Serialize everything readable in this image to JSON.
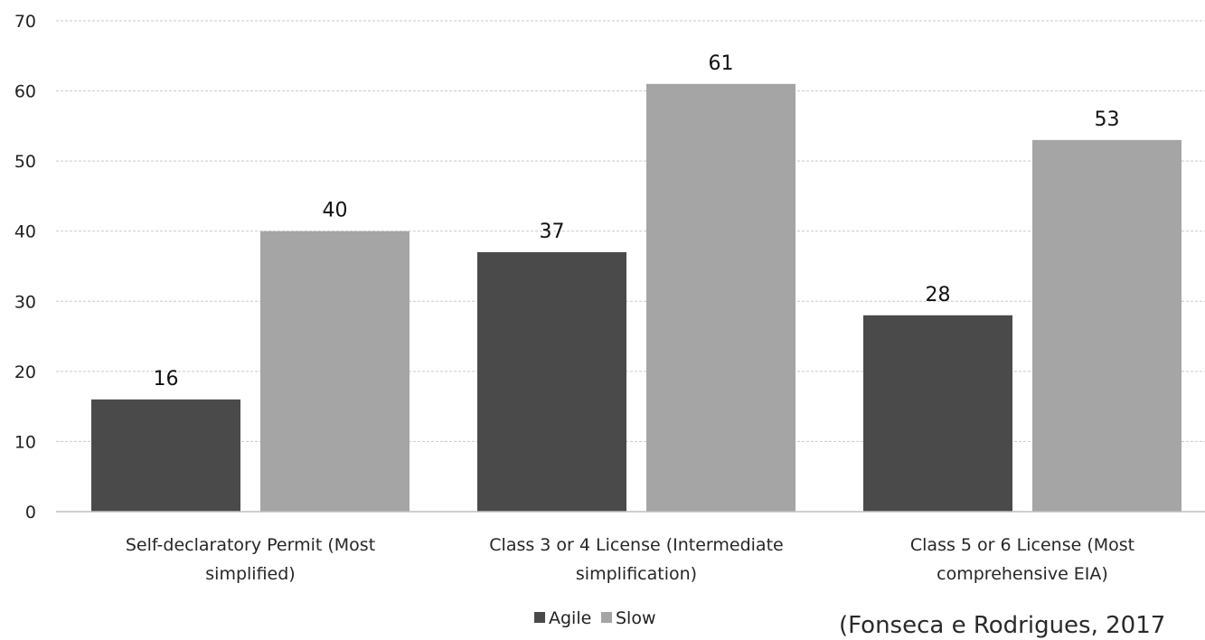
{
  "chart_data": {
    "type": "bar",
    "title": "",
    "xlabel": "",
    "ylabel": "",
    "categories": [
      [
        "Self-declaratory Permit (Most",
        "simplified)"
      ],
      [
        "Class 3 or 4 License (Intermediate",
        "simplification)"
      ],
      [
        "Class 5 or 6 License (Most",
        "comprehensive EIA)"
      ]
    ],
    "series": [
      {
        "name": "Agile",
        "color": "#4a4a4a",
        "values": [
          16,
          37,
          28
        ]
      },
      {
        "name": "Slow",
        "color": "#a5a5a5",
        "values": [
          40,
          61,
          53
        ]
      }
    ],
    "ylim": [
      0,
      70
    ],
    "yticks": [
      0,
      10,
      20,
      30,
      40,
      50,
      60,
      70
    ],
    "grid": true,
    "legend_position": "bottom-center",
    "data_labels": true
  },
  "citation": "(Fonseca e Rodrigues, 2017"
}
